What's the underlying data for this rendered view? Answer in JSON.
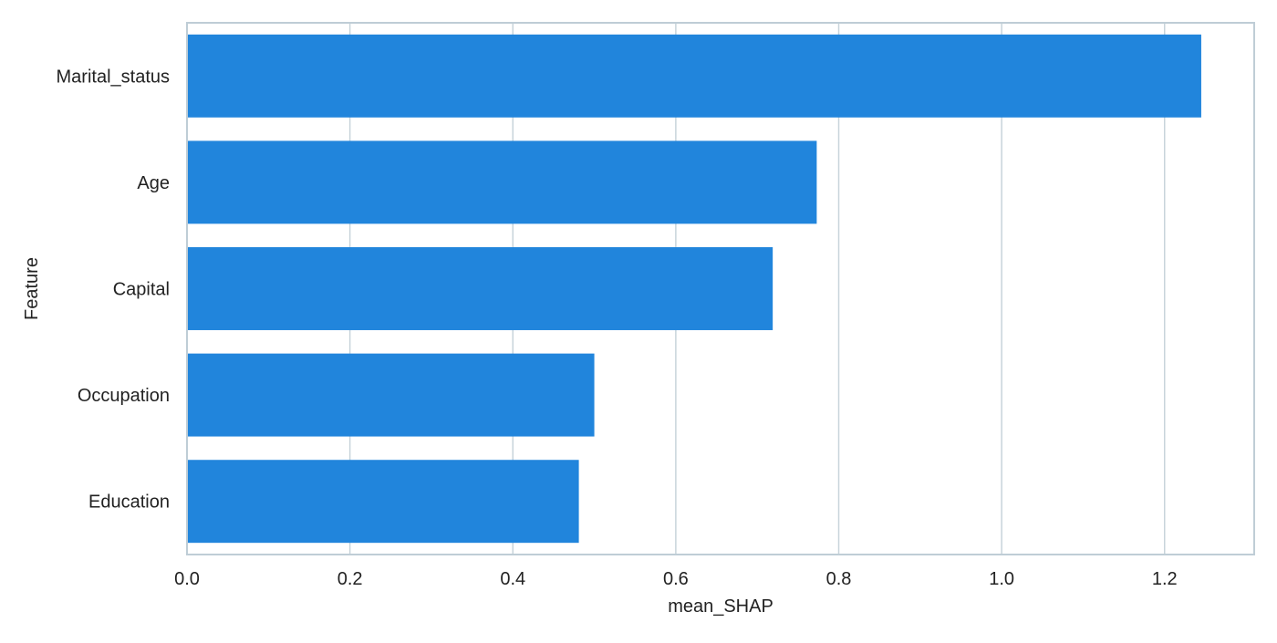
{
  "chart_data": {
    "type": "bar",
    "orientation": "horizontal",
    "categories": [
      "Marital_status",
      "Age",
      "Capital",
      "Occupation",
      "Education"
    ],
    "values": [
      1.245,
      0.773,
      0.719,
      0.5,
      0.481
    ],
    "xlabel": "mean_SHAP",
    "ylabel": "Feature",
    "xlim": [
      0,
      1.31
    ],
    "xticks": [
      0.0,
      0.2,
      0.4,
      0.6,
      0.8,
      1.0,
      1.2
    ],
    "xtick_labels": [
      "0.0",
      "0.2",
      "0.4",
      "0.6",
      "0.8",
      "1.0",
      "1.2"
    ],
    "grid": true,
    "grid_axis": "x",
    "legend": "none",
    "colors": {
      "bar": "#2185DC",
      "grid": "#C8D4DB",
      "frame": "#BFCDD6",
      "text": "#222222"
    }
  }
}
